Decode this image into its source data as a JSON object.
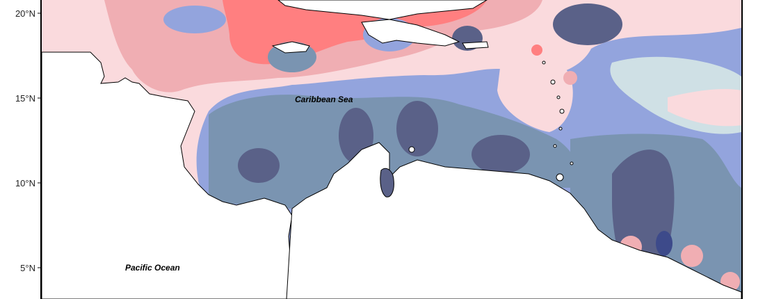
{
  "map": {
    "latitude_ticks": [
      "20°N",
      "15°N",
      "10°N",
      "5°N"
    ],
    "places": {
      "caribbean_sea": "Caribbean Sea",
      "pacific_ocean": "Pacific Ocean"
    },
    "color_scale": {
      "strong_positive": "#ff7f80",
      "positive": "#f0aeb3",
      "weak_positive": "#fadadd",
      "neutral": "#cfe0e5",
      "weak_negative": "#93a4dd",
      "negative": "#7a94b1",
      "strong_negative": "#5a6188",
      "extreme_negative": "#3d4a8a",
      "land": "#ffffff",
      "coastline": "#000000"
    }
  }
}
